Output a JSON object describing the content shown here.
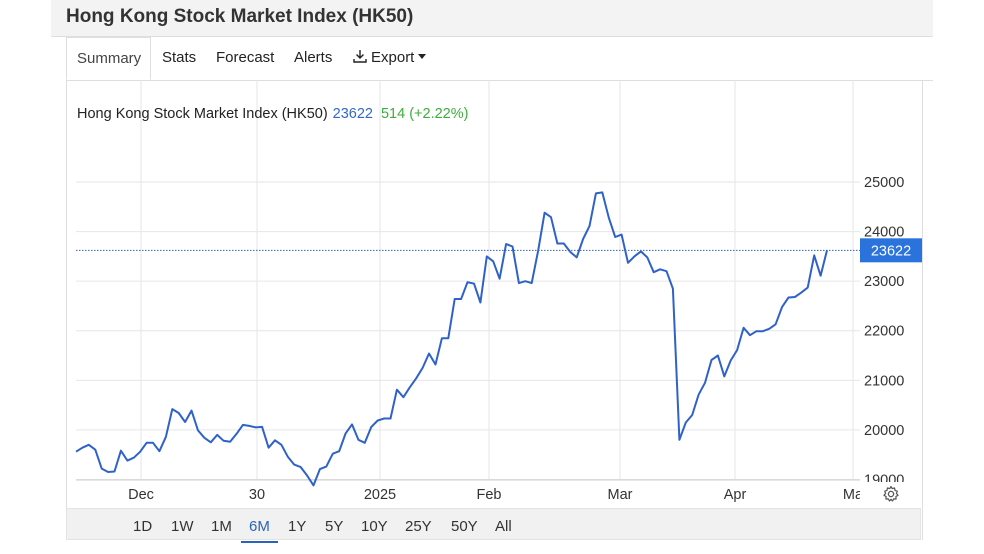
{
  "header": {
    "title": "Hong Kong Stock Market Index (HK50)"
  },
  "tabs": [
    {
      "label": "Summary",
      "active": true
    },
    {
      "label": "Stats"
    },
    {
      "label": "Forecast"
    },
    {
      "label": "Alerts"
    },
    {
      "label": "Export",
      "icon": "download-icon"
    }
  ],
  "legend": {
    "name": "Hong Kong Stock Market Index (HK50)",
    "value": "23622",
    "change": "514 (+2.22%)",
    "value_color": "#3168c9",
    "change_color": "#3cae3c"
  },
  "last_price_label": "23622",
  "ranges": [
    "1D",
    "1W",
    "1M",
    "6M",
    "1Y",
    "5Y",
    "10Y",
    "25Y",
    "50Y",
    "All"
  ],
  "active_range": "6M",
  "colors": {
    "line": "#2f62c9",
    "badge": "#2a72dc"
  },
  "settings_icon": "gear-icon",
  "chart_data": {
    "type": "line",
    "x_tick_labels": [
      "Dec",
      "30",
      "2025",
      "Feb",
      "Mar",
      "Apr",
      "Ma"
    ],
    "y_tick_labels": [
      "19000",
      "20000",
      "21000",
      "22000",
      "23000",
      "24000",
      "25000"
    ],
    "ylim": [
      18000,
      25500
    ],
    "grid": true,
    "series": [
      {
        "values": [
          19560,
          19640,
          19700,
          19600,
          19220,
          19150,
          19160,
          19580,
          19380,
          19440,
          19560,
          19740,
          19740,
          19570,
          19860,
          20420,
          20340,
          20160,
          20390,
          19990,
          19840,
          19750,
          19900,
          19780,
          19760,
          19920,
          20100,
          20080,
          20050,
          20060,
          19640,
          19790,
          19700,
          19460,
          19300,
          19250,
          19080,
          18880,
          19210,
          19260,
          19520,
          19570,
          19930,
          20110,
          19800,
          19740,
          20060,
          20190,
          20230,
          20230,
          20810,
          20660,
          20860,
          21040,
          21250,
          21540,
          21320,
          21850,
          21850,
          22640,
          22640,
          22980,
          22950,
          22570,
          23500,
          23400,
          23050,
          23750,
          23700,
          22960,
          23000,
          22960,
          23620,
          24380,
          24290,
          23760,
          23760,
          23590,
          23480,
          23850,
          24110,
          24770,
          24790,
          24280,
          23890,
          23940,
          23370,
          23500,
          23600,
          23480,
          23180,
          23240,
          23200,
          22850,
          19800,
          20150,
          20300,
          20710,
          20950,
          21410,
          21500,
          21080,
          21400,
          21610,
          22060,
          21910,
          21990,
          21990,
          22040,
          22130,
          22480,
          22670,
          22680,
          22770,
          22870,
          23520,
          23110,
          23622
        ]
      }
    ]
  }
}
